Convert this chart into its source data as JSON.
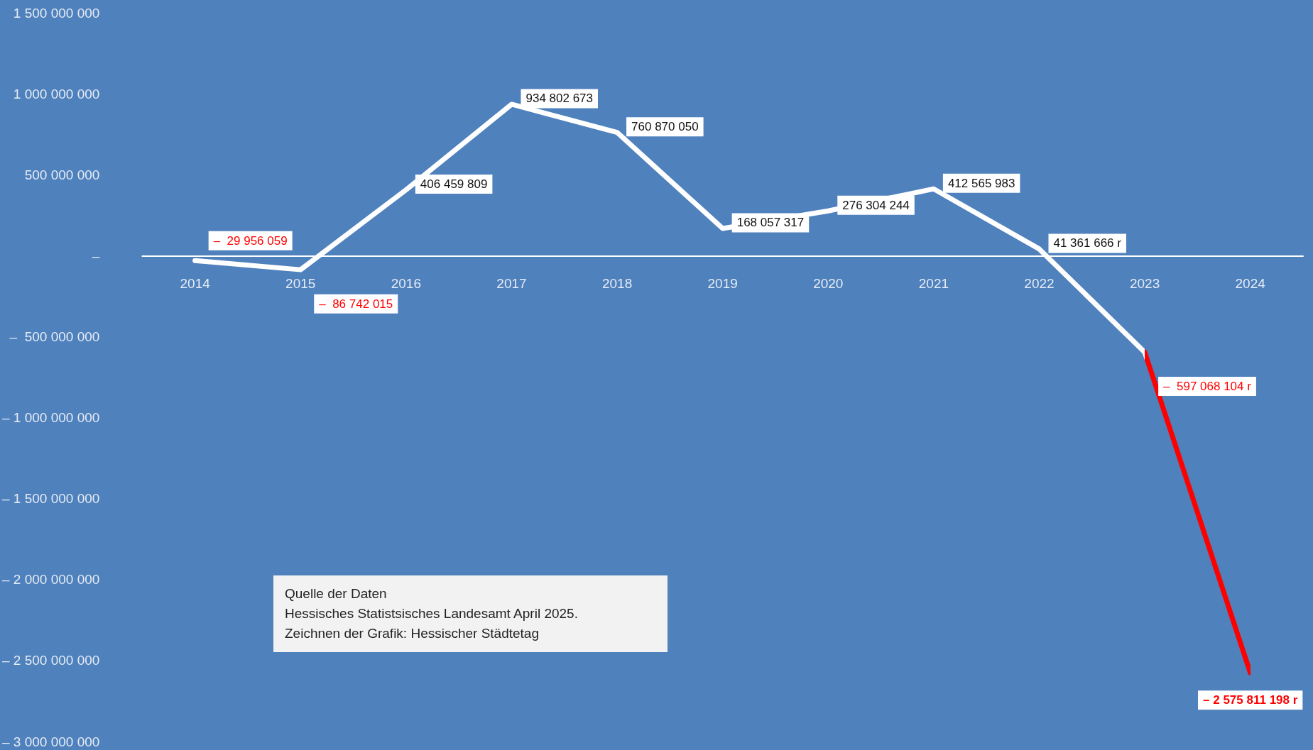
{
  "chart_data": {
    "type": "line",
    "categories": [
      "2014",
      "2015",
      "2016",
      "2017",
      "2018",
      "2019",
      "2020",
      "2021",
      "2022",
      "2023",
      "2024"
    ],
    "series": [
      {
        "colors": [
          "#ffffff",
          "#ffffff",
          "#ffffff",
          "#ffffff",
          "#ffffff",
          "#ffffff",
          "#ffffff",
          "#ffffff",
          "#ffffff",
          "#ffffff",
          "#ff0000"
        ],
        "values": [
          -29956059,
          -86742015,
          406459809,
          934802673,
          760870050,
          168057317,
          276304244,
          412565983,
          41361666,
          -597068104,
          -2575811198
        ],
        "value_labels": [
          "–  29 956 059",
          "–  86 742 015",
          "406 459 809",
          "934 802 673",
          "760 870 050",
          "168 057 317",
          "276 304 244",
          "412 565 983",
          "41 361 666 r",
          "–  597 068 104 r",
          "– 2 575 811 198 r"
        ]
      }
    ],
    "ylim": [
      -3000000000,
      1500000000
    ],
    "yticks": [
      {
        "value": -3000000000,
        "label": "– 3 000 000 000"
      },
      {
        "value": -2500000000,
        "label": "– 2 500 000 000"
      },
      {
        "value": -2000000000,
        "label": "– 2 000 000 000"
      },
      {
        "value": -1500000000,
        "label": "– 1 500 000 000"
      },
      {
        "value": -1000000000,
        "label": "– 1 000 000 000"
      },
      {
        "value": -500000000,
        "label": "–  500 000 000"
      },
      {
        "value": 0,
        "label": "–"
      },
      {
        "value": 500000000,
        "label": "500 000 000"
      },
      {
        "value": 1000000000,
        "label": "1 000 000 000"
      },
      {
        "value": 1500000000,
        "label": "1 500 000 000"
      }
    ],
    "grid": false,
    "marker": "none",
    "line_style": "solid",
    "annotations": [
      "Quelle der  Daten",
      "Hessisches Statistsisches Landesamt April 2025.",
      "Zeichnen der Grafik: Hessischer Städtetag"
    ]
  }
}
